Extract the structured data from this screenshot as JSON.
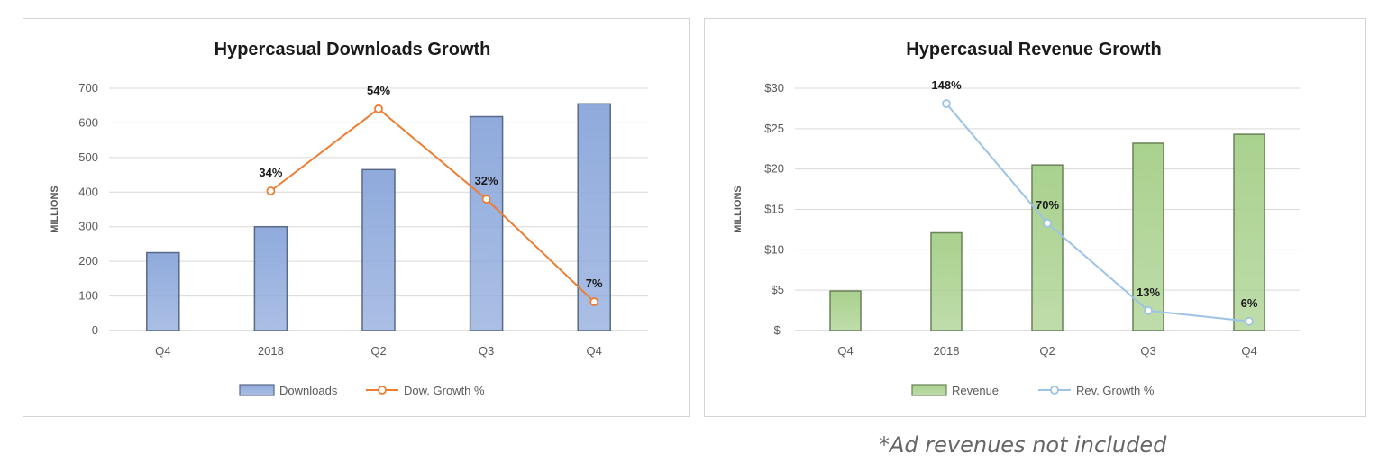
{
  "chart_data": [
    {
      "type": "bar",
      "title": "Hypercasual Downloads Growth",
      "ylabel": "MILLIONS",
      "xlabel": "",
      "categories": [
        "Q4",
        "2018",
        "Q2",
        "Q3",
        "Q4"
      ],
      "ylim": [
        0,
        700
      ],
      "yticks": [
        0,
        100,
        200,
        300,
        400,
        500,
        600,
        700
      ],
      "ytick_labels": [
        "0",
        "100",
        "200",
        "300",
        "400",
        "500",
        "600",
        "700"
      ],
      "grid": true,
      "legend_position": "bottom",
      "series": [
        {
          "name": "Downloads",
          "kind": "bar",
          "color": "#8faadc",
          "values": [
            225,
            300,
            465,
            618,
            655
          ]
        },
        {
          "name": "Dow. Growth %",
          "kind": "line",
          "color": "#ed7d31",
          "axis": "secondary",
          "values": [
            null,
            34,
            54,
            32,
            7
          ],
          "data_labels": [
            null,
            "34%",
            "54%",
            "32%",
            "7%"
          ],
          "secondary_range": [
            0,
            59
          ]
        }
      ]
    },
    {
      "type": "bar",
      "title": "Hypercasual Revenue Growth",
      "ylabel": "MILLIONS",
      "xlabel": "",
      "categories": [
        "Q4",
        "2018",
        "Q2",
        "Q3",
        "Q4"
      ],
      "ylim": [
        0,
        30
      ],
      "yticks": [
        0,
        5,
        10,
        15,
        20,
        25,
        30
      ],
      "ytick_labels": [
        "$-",
        "$5",
        "$10",
        "$15",
        "$20",
        "$25",
        "$30"
      ],
      "grid": true,
      "legend_position": "bottom",
      "series": [
        {
          "name": "Revenue",
          "kind": "bar",
          "color": "#a9d18e",
          "values": [
            4.9,
            12.1,
            20.5,
            23.2,
            24.3
          ]
        },
        {
          "name": "Rev. Growth %",
          "kind": "line",
          "color": "#9dc3e6",
          "axis": "secondary",
          "values": [
            null,
            148,
            70,
            13,
            6
          ],
          "data_labels": [
            null,
            "148%",
            "70%",
            "13%",
            "6%"
          ],
          "secondary_range": [
            0,
            158
          ]
        }
      ]
    }
  ],
  "footnote": "*Ad revenues not included"
}
